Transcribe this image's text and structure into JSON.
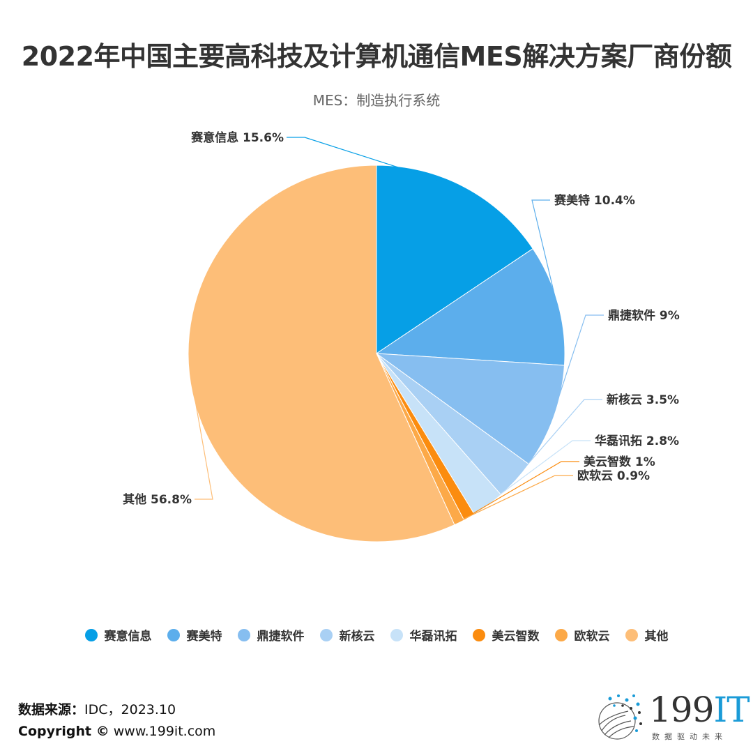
{
  "title": "2022年中国主要高科技及计算机通信MES解决方案厂商份额",
  "subtitle": "MES：制造执行系统",
  "chart_data": {
    "type": "pie",
    "unit": "%",
    "slices": [
      {
        "name": "赛意信息",
        "value": 15.6,
        "label": "赛意信息 15.6%",
        "color": "#069fe6"
      },
      {
        "name": "赛美特",
        "value": 10.4,
        "label": "赛美特 10.4%",
        "color": "#5caeec"
      },
      {
        "name": "鼎捷软件",
        "value": 9,
        "label": "鼎捷软件 9%",
        "color": "#86bef0"
      },
      {
        "name": "新核云",
        "value": 3.5,
        "label": "新核云 3.5%",
        "color": "#a9d0f4"
      },
      {
        "name": "华磊讯拓",
        "value": 2.8,
        "label": "华磊讯拓 2.8%",
        "color": "#c7e2f8"
      },
      {
        "name": "美云智数",
        "value": 1,
        "label": "美云智数 1%",
        "color": "#fb8c0f"
      },
      {
        "name": "欧软云",
        "value": 0.9,
        "label": "欧软云 0.9%",
        "color": "#fca948"
      },
      {
        "name": "其他",
        "value": 56.8,
        "label": "其他 56.8%",
        "color": "#fdbe78"
      }
    ],
    "legend_position": "bottom"
  },
  "footer": {
    "source_label": "数据来源：",
    "source_value": "IDC，2023.10",
    "copyright_label": "Copyright ©",
    "copyright_value": "www.199it.com"
  },
  "logo": {
    "text_num": "199",
    "text_it": "IT",
    "tagline": "数据驱动未来",
    "accent": "#1a9bd7"
  }
}
